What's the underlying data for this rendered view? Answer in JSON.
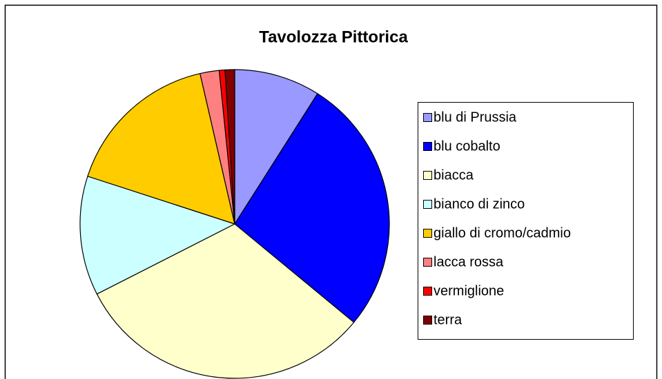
{
  "chart_data": {
    "type": "pie",
    "title": "Tavolozza Pittorica",
    "categories": [
      "blu di Prussia",
      "blu cobalto",
      "biacca",
      "bianco di zinco",
      "giallo di cromo/cadmio",
      "lacca rossa",
      "vermiglione",
      "terra"
    ],
    "values": [
      9,
      27,
      31.5,
      12.5,
      16.4,
      2,
      0.6,
      1
    ],
    "colors": [
      "#9999ff",
      "#0000ff",
      "#ffffcc",
      "#ccffff",
      "#ffcc00",
      "#ff8080",
      "#ff0000",
      "#800000"
    ],
    "legend": "right"
  }
}
